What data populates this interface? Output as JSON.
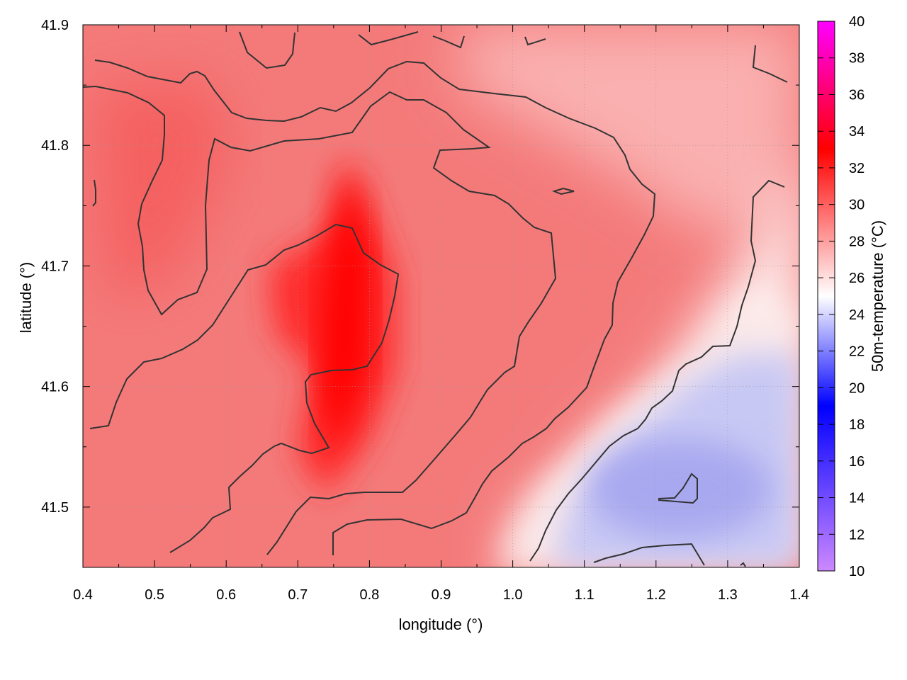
{
  "chart_data": {
    "type": "heatmap",
    "title": "",
    "xlabel": "longitude (°)",
    "ylabel": "latitude (°)",
    "colorbar_label": "50m-temperature (°C)",
    "xlim": [
      0.4,
      1.4
    ],
    "ylim": [
      41.45,
      41.9
    ],
    "x_ticks": [
      "0.4",
      "0.5",
      "0.6",
      "0.7",
      "0.8",
      "0.9",
      "1.0",
      "1.1",
      "1.2",
      "1.3",
      "1.4"
    ],
    "y_ticks": [
      "41.5",
      "41.6",
      "41.7",
      "41.8",
      "41.9"
    ],
    "colorbar_range": [
      10,
      40
    ],
    "colorbar_ticks": [
      "10",
      "12",
      "14",
      "16",
      "18",
      "20",
      "22",
      "24",
      "26",
      "28",
      "30",
      "32",
      "34",
      "36",
      "38",
      "40"
    ],
    "colormap": [
      {
        "value": 10,
        "color": "#cc88ff"
      },
      {
        "value": 19,
        "color": "#0000ff"
      },
      {
        "value": 25,
        "color": "#ffffff"
      },
      {
        "value": 33,
        "color": "#ff0000"
      },
      {
        "value": 40,
        "color": "#ff00ff"
      }
    ],
    "grid": true,
    "contour_color": "#333333",
    "hotspot": {
      "x": 0.76,
      "y": 41.72,
      "value": 33
    },
    "cool_region": {
      "x": 1.25,
      "y": 41.51,
      "value": 21
    },
    "contours": [
      {
        "level": 28,
        "points": [
          [
            0.415,
            41.874
          ],
          [
            0.445,
            41.865
          ],
          [
            0.465,
            41.857
          ],
          [
            0.495,
            41.843
          ],
          [
            0.535,
            41.835
          ],
          [
            0.548,
            41.845
          ],
          [
            0.56,
            41.848
          ],
          [
            0.575,
            41.84
          ],
          [
            0.59,
            41.82
          ],
          [
            0.605,
            41.797
          ],
          [
            0.61,
            41.788
          ],
          [
            0.634,
            41.783
          ],
          [
            0.67,
            41.784
          ],
          [
            0.733,
            41.79
          ],
          [
            0.753,
            41.796
          ],
          [
            0.79,
            41.812
          ],
          [
            0.82,
            41.833
          ],
          [
            0.845,
            41.838
          ],
          [
            0.875,
            41.838
          ],
          [
            0.898,
            41.83
          ],
          [
            0.93,
            41.81
          ],
          [
            0.95,
            41.793
          ],
          [
            0.957,
            41.784
          ],
          [
            0.95,
            41.78
          ],
          [
            0.93,
            41.78
          ],
          [
            0.9,
            41.772
          ],
          [
            0.89,
            41.768
          ],
          [
            0.9,
            41.758
          ],
          [
            0.93,
            41.75
          ],
          [
            0.965,
            41.73
          ],
          [
            0.98,
            41.72
          ],
          [
            1.0,
            41.708
          ],
          [
            1.023,
            41.691
          ],
          [
            1.045,
            41.664
          ],
          [
            1.053,
            41.657
          ],
          [
            1.057,
            41.658
          ],
          [
            1.055,
            41.652
          ],
          [
            1.058,
            41.637
          ],
          [
            1.063,
            41.612
          ],
          [
            1.063,
            41.568
          ],
          [
            1.062,
            41.534
          ],
          [
            1.055,
            41.52
          ],
          [
            1.045,
            41.506
          ],
          [
            1.03,
            41.487
          ],
          [
            1.02,
            41.47
          ],
          [
            1.013,
            41.46
          ],
          [
            1.008,
            41.455
          ]
        ]
      },
      {
        "level": 26,
        "points": [
          [
            0.41,
            41.897
          ],
          [
            0.42,
            41.882
          ],
          [
            0.445,
            41.87
          ],
          [
            0.47,
            41.866
          ],
          [
            0.51,
            41.862
          ]
        ]
      }
    ],
    "annotations": []
  }
}
